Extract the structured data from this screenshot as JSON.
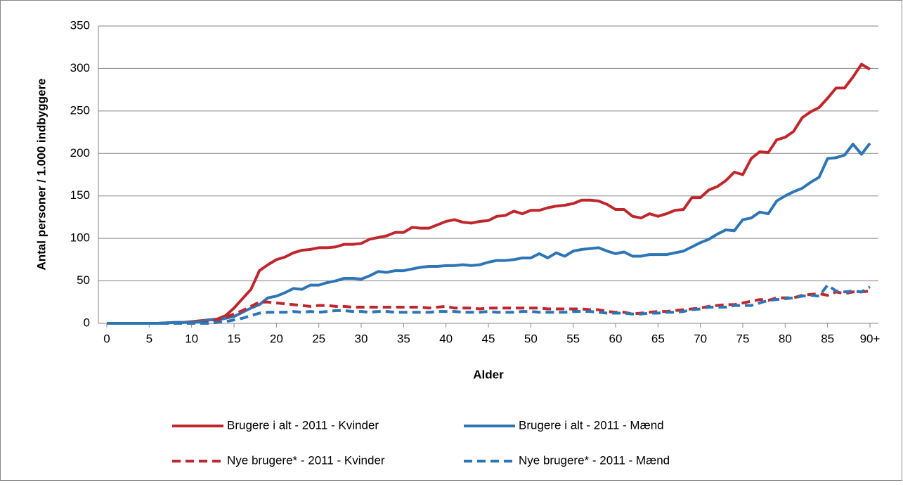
{
  "chart_data": {
    "type": "line",
    "x_label": "Alder",
    "y_label": "Antal personer / 1.000 indbyggere",
    "x": [
      0,
      1,
      2,
      3,
      4,
      5,
      6,
      7,
      8,
      9,
      10,
      11,
      12,
      13,
      14,
      15,
      16,
      17,
      18,
      19,
      20,
      21,
      22,
      23,
      24,
      25,
      26,
      27,
      28,
      29,
      30,
      31,
      32,
      33,
      34,
      35,
      36,
      37,
      38,
      39,
      40,
      41,
      42,
      43,
      44,
      45,
      46,
      47,
      48,
      49,
      50,
      51,
      52,
      53,
      54,
      55,
      56,
      57,
      58,
      59,
      60,
      61,
      62,
      63,
      64,
      65,
      66,
      67,
      68,
      69,
      70,
      71,
      72,
      73,
      74,
      75,
      76,
      77,
      78,
      79,
      80,
      81,
      82,
      83,
      84,
      85,
      86,
      87,
      88,
      89,
      90
    ],
    "xlim": [
      0,
      90
    ],
    "xticks": [
      0,
      5,
      10,
      15,
      20,
      25,
      30,
      35,
      40,
      45,
      50,
      55,
      60,
      65,
      70,
      75,
      80,
      85,
      {
        "value": 90,
        "label": "90+"
      }
    ],
    "ylim": [
      0,
      350
    ],
    "yticks": [
      0,
      50,
      100,
      150,
      200,
      250,
      300,
      350
    ],
    "grid": true,
    "series": [
      {
        "name": "Brugere i alt - 2011 - Kvinder",
        "color": "#c0272d",
        "dashed": false,
        "values": [
          0,
          0,
          0,
          0,
          0,
          0,
          0,
          0.5,
          1,
          1,
          2,
          3,
          4,
          5,
          9,
          18,
          29,
          40,
          62,
          69,
          75,
          78,
          83,
          86,
          87,
          89,
          89,
          90,
          93,
          93,
          94,
          99,
          101,
          103,
          107,
          107,
          113,
          112,
          112,
          116,
          120,
          122,
          119,
          118,
          120,
          121,
          126,
          127,
          132,
          129,
          133,
          133,
          136,
          138,
          139,
          141,
          145,
          145,
          144,
          140,
          134,
          134,
          126,
          124,
          129,
          126,
          129,
          133,
          134,
          148,
          148,
          157,
          161,
          168,
          178,
          175,
          194,
          202,
          201,
          216,
          219,
          226,
          242,
          249,
          254,
          265,
          277,
          277,
          290,
          305,
          299
        ]
      },
      {
        "name": "Brugere i alt - 2011 - Mænd",
        "color": "#2e75b6",
        "dashed": false,
        "values": [
          0,
          0,
          0,
          0,
          0,
          0,
          0,
          0.5,
          1,
          1,
          1,
          2,
          4,
          4,
          6,
          8,
          13,
          18,
          22,
          30,
          32,
          36,
          41,
          40,
          45,
          45,
          48,
          50,
          53,
          53,
          52,
          56,
          61,
          60,
          62,
          62,
          64,
          66,
          67,
          67,
          68,
          68,
          69,
          68,
          69,
          72,
          74,
          74,
          75,
          77,
          77,
          82,
          77,
          83,
          79,
          85,
          87,
          88,
          89,
          85,
          82,
          84,
          79,
          79,
          81,
          81,
          81,
          83,
          85,
          90,
          95,
          99,
          105,
          110,
          109,
          122,
          124,
          131,
          129,
          144,
          150,
          155,
          159,
          166,
          172,
          194,
          195,
          198,
          211,
          199,
          212
        ]
      },
      {
        "name": "Nye brugere* - 2011 - Kvinder",
        "color": "#c0272d",
        "dashed": true,
        "values": [
          0,
          0,
          0,
          0,
          0,
          0,
          0,
          0,
          0,
          0,
          0,
          0,
          1,
          4,
          7,
          11,
          15,
          20,
          25,
          25,
          24,
          23,
          22,
          21,
          20,
          21,
          21,
          20,
          20,
          19,
          19,
          19,
          19,
          19,
          19,
          19,
          19,
          19,
          18,
          19,
          20,
          18,
          18,
          18,
          17,
          18,
          18,
          18,
          18,
          18,
          18,
          18,
          17,
          17,
          17,
          17,
          17,
          16,
          16,
          14,
          13,
          13,
          11,
          12,
          13,
          14,
          14,
          15,
          16,
          17,
          18,
          20,
          21,
          22,
          22,
          24,
          26,
          28,
          27,
          30,
          30,
          30,
          33,
          34,
          35,
          33,
          37,
          35,
          37,
          37,
          38
        ]
      },
      {
        "name": "Nye brugere* - 2011 - Mænd",
        "color": "#2e75b6",
        "dashed": true,
        "values": [
          0,
          0,
          0,
          0,
          0,
          0,
          0,
          0,
          0,
          0,
          0,
          0,
          0,
          1,
          2,
          4,
          6,
          9,
          12,
          13,
          13,
          13,
          14,
          13,
          14,
          13,
          14,
          15,
          15,
          14,
          14,
          13,
          14,
          14,
          13,
          13,
          13,
          13,
          13,
          14,
          14,
          14,
          13,
          13,
          13,
          14,
          13,
          13,
          13,
          14,
          14,
          13,
          13,
          13,
          13,
          14,
          14,
          14,
          13,
          12,
          12,
          12,
          11,
          11,
          12,
          12,
          13,
          13,
          14,
          16,
          17,
          19,
          19,
          19,
          21,
          21,
          21,
          24,
          27,
          28,
          29,
          30,
          32,
          33,
          32,
          45,
          38,
          37,
          38,
          37,
          43
        ]
      }
    ]
  }
}
